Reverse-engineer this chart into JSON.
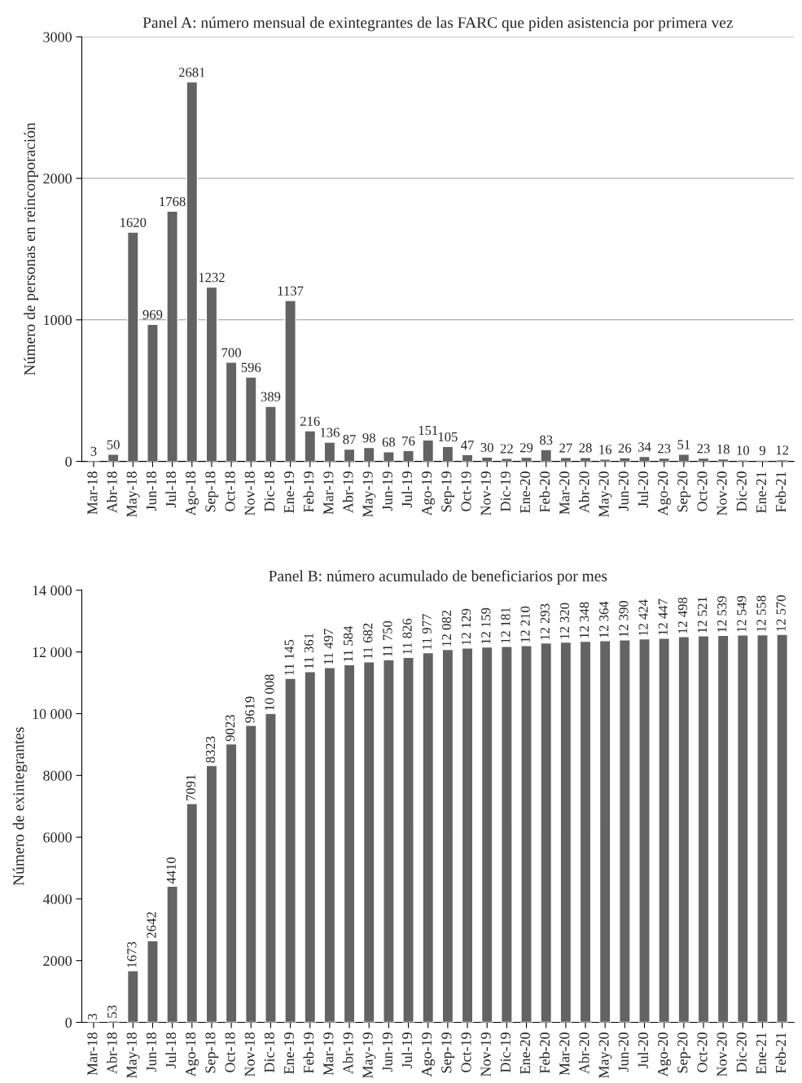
{
  "chart_data": [
    {
      "type": "bar",
      "title": "Panel A: número mensual de exintegrantes de las FARC que piden asistencia por primera vez",
      "ylabel": "Número de personas en reincorporación",
      "categories": [
        "Mar-18",
        "Abr-18",
        "May-18",
        "Jun-18",
        "Jul-18",
        "Ago-18",
        "Sep-18",
        "Oct-18",
        "Nov-18",
        "Dic-18",
        "Ene-19",
        "Feb-19",
        "Mar-19",
        "Abr-19",
        "May-19",
        "Jun-19",
        "Jul-19",
        "Ago-19",
        "Sep-19",
        "Oct-19",
        "Nov-19",
        "Dic-19",
        "Ene-20",
        "Feb-20",
        "Mar-20",
        "Abr-20",
        "May-20",
        "Jun-20",
        "Jul-20",
        "Ago-20",
        "Sep-20",
        "Oct-20",
        "Nov-20",
        "Dic-20",
        "Ene-21",
        "Feb-21"
      ],
      "values": [
        3,
        50,
        1620,
        969,
        1768,
        2681,
        1232,
        700,
        596,
        389,
        1137,
        216,
        136,
        87,
        98,
        68,
        76,
        151,
        105,
        47,
        30,
        22,
        29,
        83,
        27,
        28,
        16,
        26,
        34,
        23,
        51,
        23,
        18,
        10,
        9,
        12
      ],
      "color": "#636363",
      "ylim": [
        0,
        3000
      ],
      "yticks": [
        0,
        1000,
        2000,
        3000
      ],
      "grid": "y",
      "data_labels": true
    },
    {
      "type": "bar",
      "title": "Panel B: número acumulado de beneficiarios por mes",
      "ylabel": "Número de exintegrantes",
      "categories": [
        "Mar-18",
        "Abr-18",
        "May-18",
        "Jun-18",
        "Jul-18",
        "Ago-18",
        "Sep-18",
        "Oct-18",
        "Nov-18",
        "Dic-18",
        "Ene-19",
        "Feb-19",
        "Mar-19",
        "Abr-19",
        "May-19",
        "Jun-19",
        "Jul-19",
        "Ago-19",
        "Sep-19",
        "Oct-19",
        "Nov-19",
        "Dic-19",
        "Ene-20",
        "Feb-20",
        "Mar-20",
        "Abr-20",
        "May-20",
        "Jun-20",
        "Jul-20",
        "Ago-20",
        "Sep-20",
        "Oct-20",
        "Nov-20",
        "Dic-20",
        "Ene-21",
        "Feb-21"
      ],
      "values": [
        3,
        53,
        1673,
        2642,
        4410,
        7091,
        8323,
        9023,
        9619,
        10008,
        11145,
        11361,
        11497,
        11584,
        11682,
        11750,
        11826,
        11977,
        12082,
        12129,
        12159,
        12181,
        12210,
        12293,
        12320,
        12348,
        12364,
        12390,
        12424,
        12447,
        12498,
        12521,
        12539,
        12549,
        12558,
        12570
      ],
      "value_labels": [
        "3",
        "53",
        "1673",
        "2642",
        "4410",
        "7091",
        "8323",
        "9023",
        "9619",
        "10 008",
        "11 145",
        "11 361",
        "11 497",
        "11 584",
        "11 682",
        "11 750",
        "11 826",
        "11 977",
        "12 082",
        "12 129",
        "12 159",
        "12 181",
        "12 210",
        "12 293",
        "12 320",
        "12 348",
        "12 364",
        "12 390",
        "12 424",
        "12 447",
        "12 498",
        "12 521",
        "12 539",
        "12 549",
        "12 558",
        "12 570"
      ],
      "color": "#636363",
      "ylim": [
        0,
        14000
      ],
      "yticks": [
        0,
        2000,
        4000,
        6000,
        8000,
        {
          "value": 10000,
          "label": "10 000"
        },
        {
          "value": 12000,
          "label": "12 000"
        },
        {
          "value": 14000,
          "label": "14 000"
        }
      ],
      "grid": false
    }
  ]
}
